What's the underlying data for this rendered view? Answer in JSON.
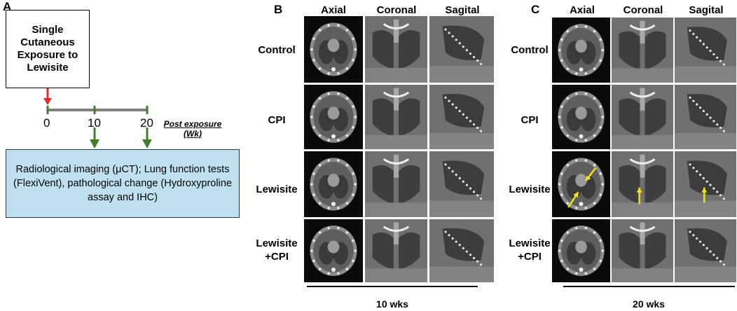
{
  "panels": {
    "a": {
      "letter": "A",
      "exposure_box": [
        "Single",
        "Cutaneous",
        "Exposure to",
        "Lewisite"
      ],
      "timeline_ticks": [
        "0",
        "10",
        "20"
      ],
      "post_exposure_label": [
        "Post exposure",
        "(Wk)"
      ],
      "outcomes_box": "Radiological imaging (μCT); Lung function tests (FlexiVent), pathological change (Hydroxyproline assay and IHC)",
      "colors": {
        "exposure_arrow": "#e8262a",
        "assessment_arrow": "#3f7f2a",
        "timeline": "#808080",
        "outcomes_fill": "#bfe0ef"
      }
    },
    "b": {
      "letter": "B",
      "columns": [
        "Axial",
        "Coronal",
        "Sagital"
      ],
      "rows": [
        "Control",
        "CPI",
        "Lewisite",
        "Lewisite\n+CPI"
      ],
      "scale_label": "10 wks"
    },
    "c": {
      "letter": "C",
      "columns": [
        "Axial",
        "Coronal",
        "Sagital"
      ],
      "rows": [
        "Control",
        "CPI",
        "Lewisite",
        "Lewisite\n+CPI"
      ],
      "scale_label": "20 wks",
      "annotation_arrow_color": "#f5e11a"
    }
  }
}
